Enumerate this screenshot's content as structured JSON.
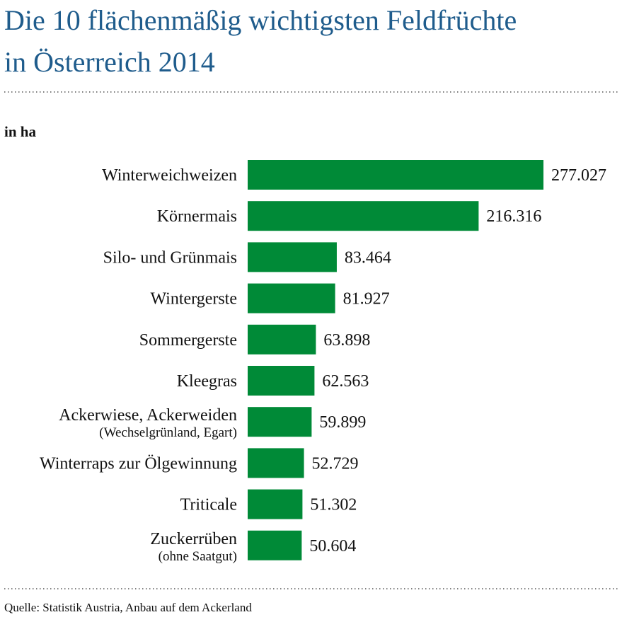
{
  "chart_data": {
    "type": "bar",
    "orientation": "horizontal",
    "title": [
      "Die 10 flächenmäßig wichtigsten Feldfrüchte",
      "in Österreich 2014"
    ],
    "unit": "in ha",
    "categories": [
      "Winterweichweizen",
      "Körnermais",
      "Silo- und Grünmais",
      "Wintergerste",
      "Sommergerste",
      "Kleegras",
      "Ackerwiese, Ackerweiden",
      "Winterraps zur Ölgewinnung",
      "Triticale",
      "Zuckerrüben"
    ],
    "category_notes": [
      null,
      null,
      null,
      null,
      null,
      null,
      "(Wechselgrünland, Egart)",
      null,
      null,
      "(ohne Saatgut)"
    ],
    "values": [
      277027,
      216316,
      83464,
      81927,
      63898,
      62563,
      59899,
      52729,
      51302,
      50604
    ],
    "value_labels": [
      "277.027",
      "216.316",
      "83.464",
      "81.927",
      "63.898",
      "62.563",
      "59.899",
      "52.729",
      "51.302",
      "50.604"
    ],
    "color": "#008a37",
    "source": "Quelle: Statistik Austria, Anbau auf dem Ackerland"
  }
}
